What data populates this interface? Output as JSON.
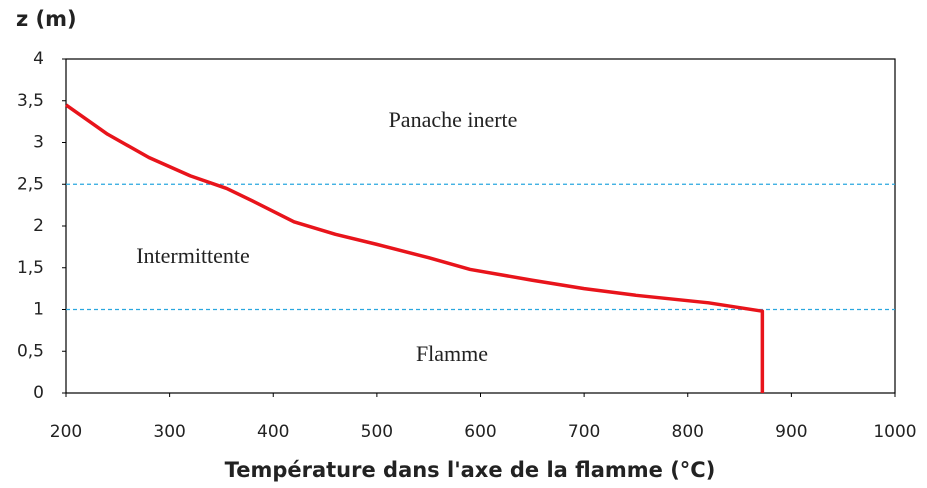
{
  "chart_data": {
    "type": "line",
    "title": "z (m)",
    "x_label": "Température dans l'axe de la flamme (°C)",
    "x": [
      200,
      240,
      280,
      320,
      355,
      380,
      420,
      460,
      500,
      550,
      590,
      650,
      700,
      750,
      820,
      872,
      872
    ],
    "values": [
      3.45,
      3.1,
      2.82,
      2.6,
      2.45,
      2.3,
      2.05,
      1.9,
      1.78,
      1.62,
      1.48,
      1.35,
      1.25,
      1.17,
      1.08,
      0.98,
      0
    ],
    "color": "#e8141b",
    "xlim": [
      200,
      1000
    ],
    "xticks": [
      200,
      300,
      400,
      500,
      600,
      700,
      800,
      900,
      1000
    ],
    "ylim": [
      0,
      4
    ],
    "yticks": [
      0,
      {
        "value": 0.5,
        "label": "0,5"
      },
      1,
      {
        "value": 1.5,
        "label": "1,5"
      },
      2,
      {
        "value": 2.5,
        "label": "2,5"
      },
      3,
      {
        "value": 3.5,
        "label": "3,5"
      },
      4
    ],
    "reference_lines": [
      1,
      2.5
    ],
    "reference_color": "#2aa7df",
    "annotations": [
      "Panache inerte",
      "Intermittente",
      "Flamme"
    ],
    "grid": false
  }
}
